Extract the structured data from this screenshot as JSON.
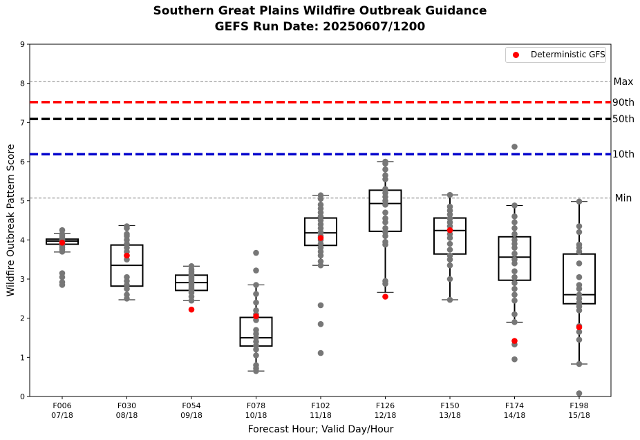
{
  "chart_data": {
    "type": "box",
    "title": "Southern Great Plains Wildfire Outbreak Guidance",
    "subtitle": "GEFS Run Date: 20250607/1200",
    "xlabel": "Forecast Hour; Valid Day/Hour",
    "ylabel": "Wildfire Outbreak Pattern Score",
    "ylim": [
      0,
      9
    ],
    "yticks": [
      0,
      1,
      2,
      3,
      4,
      5,
      6,
      7,
      8,
      9
    ],
    "categories": [
      {
        "hour": "F006",
        "valid": "07/18"
      },
      {
        "hour": "F030",
        "valid": "08/18"
      },
      {
        "hour": "F054",
        "valid": "09/18"
      },
      {
        "hour": "F078",
        "valid": "10/18"
      },
      {
        "hour": "F102",
        "valid": "11/18"
      },
      {
        "hour": "F126",
        "valid": "12/18"
      },
      {
        "hour": "F150",
        "valid": "13/18"
      },
      {
        "hour": "F174",
        "valid": "14/18"
      },
      {
        "hour": "F198",
        "valid": "15/18"
      }
    ],
    "boxes": [
      {
        "whislo": 3.69,
        "q1": 3.89,
        "med": 3.97,
        "q3": 4.02,
        "whishi": 4.16
      },
      {
        "whislo": 2.47,
        "q1": 2.82,
        "med": 3.35,
        "q3": 3.87,
        "whishi": 4.37
      },
      {
        "whislo": 2.45,
        "q1": 2.71,
        "med": 2.91,
        "q3": 3.1,
        "whishi": 3.33
      },
      {
        "whislo": 0.65,
        "q1": 1.29,
        "med": 1.5,
        "q3": 2.02,
        "whishi": 2.85
      },
      {
        "whislo": 3.35,
        "q1": 3.86,
        "med": 4.18,
        "q3": 4.56,
        "whishi": 5.14
      },
      {
        "whislo": 2.66,
        "q1": 4.22,
        "med": 4.93,
        "q3": 5.27,
        "whishi": 6.0
      },
      {
        "whislo": 2.47,
        "q1": 3.64,
        "med": 4.24,
        "q3": 4.56,
        "whishi": 5.15
      },
      {
        "whislo": 1.9,
        "q1": 2.97,
        "med": 3.56,
        "q3": 4.08,
        "whishi": 4.88
      },
      {
        "whislo": 0.83,
        "q1": 2.37,
        "med": 2.6,
        "q3": 3.64,
        "whishi": 4.98
      }
    ],
    "members": [
      [
        4.25,
        4.15,
        4.1,
        4.05,
        4.02,
        4.0,
        3.98,
        3.95,
        3.92,
        3.88,
        3.85,
        3.8,
        3.75,
        3.7,
        3.15,
        3.05,
        2.92,
        2.85
      ],
      [
        4.35,
        4.3,
        4.15,
        4.1,
        4.0,
        3.9,
        3.8,
        3.7,
        3.6,
        3.5,
        3.05,
        2.95,
        2.85,
        2.75,
        2.6,
        2.5
      ],
      [
        3.33,
        3.25,
        3.2,
        3.15,
        3.1,
        3.05,
        3.0,
        2.95,
        2.9,
        2.85,
        2.8,
        2.75,
        2.7,
        2.65,
        2.55,
        2.45
      ],
      [
        3.67,
        3.22,
        2.85,
        2.62,
        2.4,
        2.2,
        2.1,
        1.95,
        1.7,
        1.6,
        1.5,
        1.4,
        1.3,
        1.2,
        1.05,
        0.8,
        0.72,
        0.65
      ],
      [
        5.14,
        5.05,
        4.9,
        4.8,
        4.7,
        4.6,
        4.5,
        4.4,
        4.3,
        4.2,
        4.1,
        4.0,
        3.9,
        3.8,
        3.7,
        3.6,
        3.45,
        3.35,
        2.33,
        1.85,
        1.11
      ],
      [
        6.0,
        5.95,
        5.8,
        5.65,
        5.55,
        5.3,
        5.2,
        5.1,
        5.0,
        4.9,
        4.7,
        4.55,
        4.45,
        4.3,
        4.2,
        4.1,
        3.95,
        3.88,
        2.95,
        2.88
      ],
      [
        5.15,
        4.85,
        4.75,
        4.65,
        4.55,
        4.45,
        4.35,
        4.25,
        4.15,
        4.05,
        3.9,
        3.75,
        3.6,
        3.5,
        3.35,
        3.0,
        2.47
      ],
      [
        6.38,
        4.88,
        4.6,
        4.45,
        4.3,
        4.15,
        4.0,
        3.9,
        3.8,
        3.65,
        3.5,
        3.4,
        3.2,
        3.05,
        2.9,
        2.75,
        2.6,
        2.45,
        2.1,
        1.9,
        1.33,
        0.95
      ],
      [
        4.98,
        4.35,
        4.2,
        3.88,
        3.8,
        3.7,
        3.4,
        3.05,
        2.85,
        2.75,
        2.6,
        2.5,
        2.4,
        2.3,
        2.2,
        1.8,
        1.65,
        1.45,
        0.83,
        0.08
      ]
    ],
    "deterministic": {
      "name": "Deterministic GFS",
      "values": [
        3.93,
        3.6,
        2.22,
        2.05,
        4.05,
        2.55,
        4.25,
        1.42,
        1.77
      ]
    },
    "reference_lines": [
      {
        "label": "Max",
        "value": 8.05,
        "color": "#808080",
        "style": "dashed-thin"
      },
      {
        "label": "90th",
        "value": 7.52,
        "color": "#ff0000",
        "style": "dashed-thick"
      },
      {
        "label": "50th",
        "value": 7.09,
        "color": "#000000",
        "style": "dashed-thick"
      },
      {
        "label": "10th",
        "value": 6.19,
        "color": "#0000cc",
        "style": "dashed-thick"
      },
      {
        "label": "Min",
        "value": 5.07,
        "color": "#808080",
        "style": "dashed-thin"
      }
    ],
    "legend_position": "upper-right",
    "colors": {
      "members": "#777777",
      "deterministic": "#ff0000",
      "box": "#000000"
    }
  }
}
